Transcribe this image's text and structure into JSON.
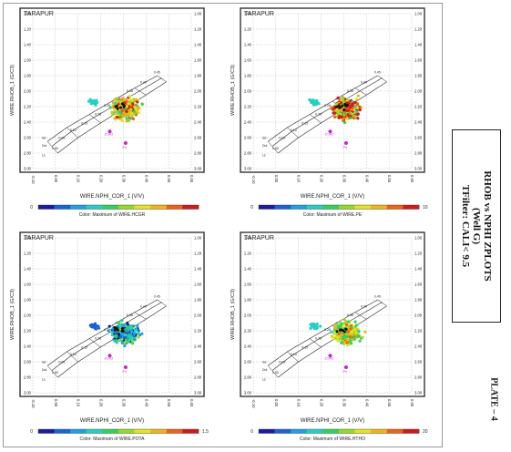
{
  "caption": {
    "line1": "RHOB vs NPHI ZPLOTS",
    "line2": "(Well G)",
    "line3": "TFilter: CALI< 9.5"
  },
  "plate_label": "PLATE – 4",
  "chart_data": [
    {
      "type": "scatter",
      "title": "TARAPUR",
      "xlabel": "WIRE.NPHI_COR_1 (V/V)",
      "ylabel": "WIRE.RHOB_1 (G/C3)",
      "xlim": [
        -0.1,
        0.6
      ],
      "ylim": [
        3.0,
        1.0
      ],
      "xticks": [
        "-0.10",
        "0.00",
        "0.10",
        "0.20",
        "0.30",
        "0.40",
        "0.50",
        "0.60"
      ],
      "yticks": [
        "1.00",
        "1.20",
        "1.40",
        "1.60",
        "1.80",
        "2.00",
        "2.20",
        "2.40",
        "2.60",
        "2.80",
        "3.00"
      ],
      "color_label": "Color: Maximum of WIRE.HCGR",
      "color_min": "0",
      "color_max": "",
      "palette": "hcgr"
    },
    {
      "type": "scatter",
      "title": "TARAPUR",
      "xlabel": "WIRE.NPHI_COR_1 (V/V)",
      "ylabel": "WIRE.RHOB_1 (G/C3)",
      "xlim": [
        -0.1,
        0.6
      ],
      "ylim": [
        3.0,
        1.0
      ],
      "xticks": [
        "-0.10",
        "0.00",
        "0.10",
        "0.20",
        "0.30",
        "0.40",
        "0.50",
        "0.60"
      ],
      "yticks": [
        "1.00",
        "1.20",
        "1.40",
        "1.60",
        "1.80",
        "2.00",
        "2.20",
        "2.40",
        "2.60",
        "2.80",
        "3.00"
      ],
      "color_label": "Color: Maximum of WIRE.PE",
      "color_min": "0",
      "color_max": "10",
      "palette": "pe"
    },
    {
      "type": "scatter",
      "title": "TARAPUR",
      "xlabel": "WIRE.NPHI_COR_1 (V/V)",
      "ylabel": "WIRE.RHOB_1 (G/C3)",
      "xlim": [
        -0.1,
        0.6
      ],
      "ylim": [
        3.0,
        1.0
      ],
      "xticks": [
        "-0.10",
        "0.00",
        "0.10",
        "0.20",
        "0.30",
        "0.40",
        "0.50",
        "0.60"
      ],
      "yticks": [
        "1.00",
        "1.20",
        "1.40",
        "1.60",
        "1.80",
        "2.00",
        "2.20",
        "2.40",
        "2.60",
        "2.80",
        "3.00"
      ],
      "color_label": "Color: Maximum of WIRE.POTA",
      "color_min": "0",
      "color_max": "1.5",
      "palette": "pota"
    },
    {
      "type": "scatter",
      "title": "TARAPUR",
      "xlabel": "WIRE.NPHI_COR_1 (V/V)",
      "ylabel": "WIRE.RHOB_1 (G/C3)",
      "xlim": [
        -0.1,
        0.6
      ],
      "ylim": [
        3.0,
        1.0
      ],
      "xticks": [
        "-0.10",
        "0.00",
        "0.10",
        "0.20",
        "0.30",
        "0.40",
        "0.50",
        "0.60"
      ],
      "yticks": [
        "1.00",
        "1.20",
        "1.40",
        "1.60",
        "1.80",
        "2.00",
        "2.20",
        "2.40",
        "2.60",
        "2.80",
        "3.00"
      ],
      "color_label": "Color: Maximum of WIRE.HTHO",
      "color_min": "0",
      "color_max": "20",
      "palette": "htho"
    }
  ],
  "overlay": {
    "porosity_labels": [
      "0.45",
      "0.40",
      "0.35",
      "0.30",
      "0.25",
      "0.20",
      "0.15",
      "0.10",
      "0.05",
      "0.00"
    ],
    "mineral_labels": [
      "Sd",
      "Dol",
      "Ls"
    ],
    "marker_labels": [
      "1CAO",
      "P4"
    ]
  },
  "colors": {
    "scale": [
      "#1a1aa8",
      "#1565d8",
      "#1ea0e6",
      "#22d1c3",
      "#2fd35a",
      "#8fdc22",
      "#e4e41a",
      "#f2b315",
      "#ee6212",
      "#d41818"
    ],
    "marker": "#cc22cc",
    "grid": "#bbbbbb",
    "frame": "#555555"
  }
}
